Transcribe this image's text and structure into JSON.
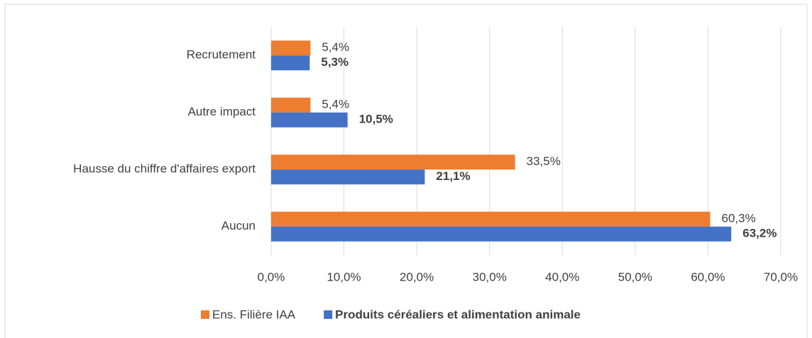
{
  "chart_data": {
    "type": "hbar",
    "categories": [
      "Recrutement",
      "Autre impact",
      "Hausse du chiffre d'affaires export",
      "Aucun"
    ],
    "series": [
      {
        "name": "Ens. Filière IAA",
        "color": "#ed7d31",
        "values": [
          5.4,
          5.4,
          33.5,
          60.3
        ],
        "value_labels": [
          "5,4%",
          "5,4%",
          "33,5%",
          "60,3%"
        ]
      },
      {
        "name": "Produits céréaliers et alimentation animale",
        "color": "#4472c4",
        "values": [
          5.3,
          10.5,
          21.1,
          63.2
        ],
        "value_labels": [
          "5,3%",
          "10,5%",
          "21,1%",
          "63,2%"
        ]
      }
    ],
    "xlim": [
      0,
      70
    ],
    "xticks": [
      {
        "value": 0,
        "label": "0,0%"
      },
      {
        "value": 10,
        "label": "10,0%"
      },
      {
        "value": 20,
        "label": "20,0%"
      },
      {
        "value": 30,
        "label": "30,0%"
      },
      {
        "value": 40,
        "label": "40,0%"
      },
      {
        "value": 50,
        "label": "50,0%"
      },
      {
        "value": 60,
        "label": "60,0%"
      },
      {
        "value": 70,
        "label": "70,0%"
      }
    ],
    "grid": true,
    "legend": "bottom"
  }
}
